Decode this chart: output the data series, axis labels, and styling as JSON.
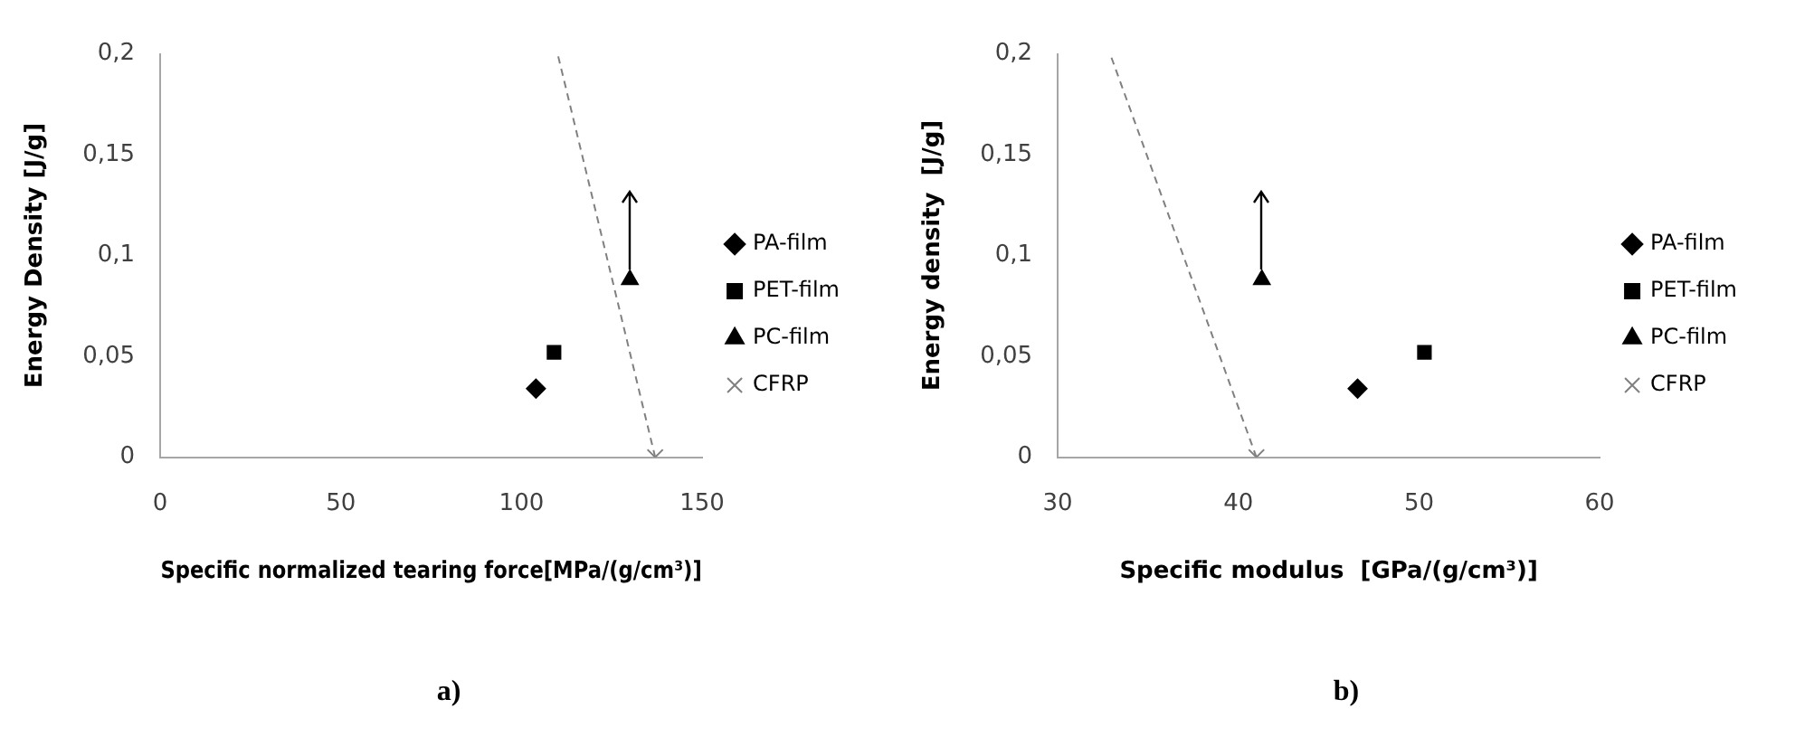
{
  "chart_data": [
    {
      "type": "scatter",
      "xlabel": "Specific normalized tearing force[MPa/(g/cm³)]",
      "ylabel": "Energy Density [J/g]",
      "annotations": [
        "a)"
      ],
      "xlim": [
        0,
        150
      ],
      "xticks": [
        0,
        50,
        100,
        150
      ],
      "ylim": [
        0,
        0.2
      ],
      "yticks": [
        {
          "value": 0,
          "label": "0"
        },
        {
          "value": 0.05,
          "label": "0,05"
        },
        {
          "value": 0.1,
          "label": "0,1"
        },
        {
          "value": 0.15,
          "label": "0,15"
        },
        {
          "value": 0.2,
          "label": "0,2"
        }
      ],
      "grid": false,
      "legend": "right",
      "series": [
        {
          "name": "PA-film",
          "color": "#000000",
          "marker": "diamond",
          "x": [
            104
          ],
          "values": [
            0.034
          ]
        },
        {
          "name": "PET-film",
          "color": "#000000",
          "marker": "square",
          "x": [
            109
          ],
          "values": [
            0.052
          ]
        },
        {
          "name": "PC-film",
          "color": "#000000",
          "marker": "triangle",
          "x": [
            130
          ],
          "values": [
            0.088
          ]
        },
        {
          "name": "CFRP",
          "color": "#808080",
          "marker": "cross",
          "x": [
            137
          ],
          "values": [
            0
          ]
        },
        {
          "type": "line",
          "color": "#808080",
          "line_style": "dashed",
          "marker": "none",
          "x": [
            137,
            110
          ],
          "values": [
            0,
            0.2
          ]
        }
      ]
    },
    {
      "type": "scatter",
      "xlabel": "Specific modulus  [GPa/(g/cm³)]",
      "ylabel": "Energy density  [J/g]",
      "annotations": [
        "b)"
      ],
      "xlim": [
        30,
        60
      ],
      "xticks": [
        30,
        40,
        50,
        60
      ],
      "ylim": [
        0,
        0.2
      ],
      "yticks": [
        {
          "value": 0,
          "label": "0"
        },
        {
          "value": 0.05,
          "label": "0,05"
        },
        {
          "value": 0.1,
          "label": "0,1"
        },
        {
          "value": 0.15,
          "label": "0,15"
        },
        {
          "value": 0.2,
          "label": "0,2"
        }
      ],
      "grid": false,
      "legend": "right",
      "series": [
        {
          "name": "PA-film",
          "color": "#000000",
          "marker": "diamond",
          "x": [
            46.6
          ],
          "values": [
            0.034
          ]
        },
        {
          "name": "PET-film",
          "color": "#000000",
          "marker": "square",
          "x": [
            50.3
          ],
          "values": [
            0.052
          ]
        },
        {
          "name": "PC-film",
          "color": "#000000",
          "marker": "triangle",
          "x": [
            41.3
          ],
          "values": [
            0.088
          ]
        },
        {
          "name": "CFRP",
          "color": "#808080",
          "marker": "cross",
          "x": [
            41
          ],
          "values": [
            0
          ]
        },
        {
          "type": "line",
          "color": "#808080",
          "line_style": "dashed",
          "marker": "none",
          "x": [
            41,
            32.9
          ],
          "values": [
            0,
            0.2
          ]
        }
      ]
    }
  ]
}
